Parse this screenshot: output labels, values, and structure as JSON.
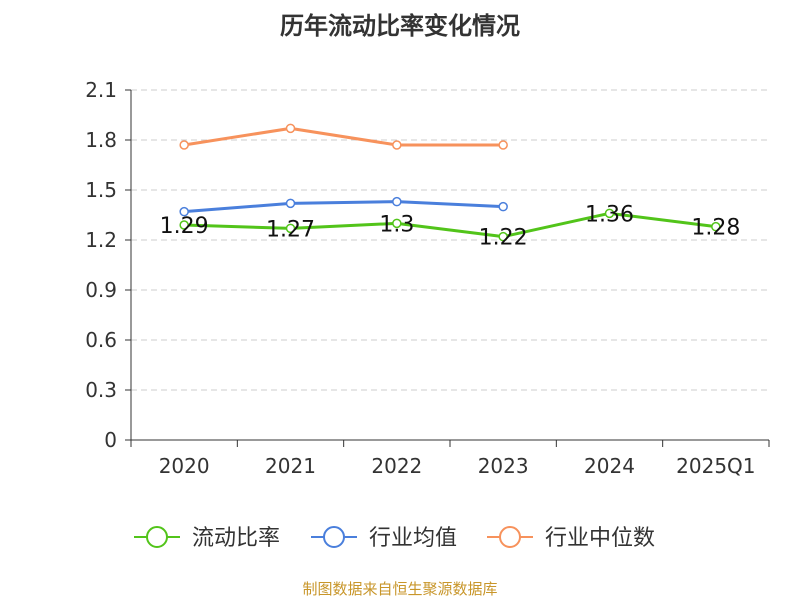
{
  "chart_data": {
    "type": "line",
    "title": "历年流动比率变化情况",
    "xlabel": "",
    "ylabel": "",
    "categories": [
      "2020",
      "2021",
      "2022",
      "2023",
      "2024",
      "2025Q1"
    ],
    "ylim": [
      0,
      2.1
    ],
    "yticks": [
      "0",
      "0.3",
      "0.6",
      "0.9",
      "1.2",
      "1.5",
      "1.8",
      "2.1"
    ],
    "grid": true,
    "legend_position": "bottom",
    "series": [
      {
        "name": "流动比率",
        "color": "#52c41a",
        "values": [
          1.29,
          1.27,
          1.3,
          1.22,
          1.36,
          1.28
        ],
        "labels": [
          "1.29",
          "1.27",
          "1.3",
          "1.22",
          "1.36",
          "1.28"
        ],
        "show_labels": true
      },
      {
        "name": "行业均值",
        "color": "#4a7fdc",
        "values": [
          1.37,
          1.42,
          1.43,
          1.4,
          null,
          null
        ],
        "show_labels": false
      },
      {
        "name": "行业中位数",
        "color": "#f7925c",
        "values": [
          1.77,
          1.87,
          1.77,
          1.77,
          null,
          null
        ],
        "show_labels": false
      }
    ],
    "source": "制图数据来自恒生聚源数据库"
  }
}
